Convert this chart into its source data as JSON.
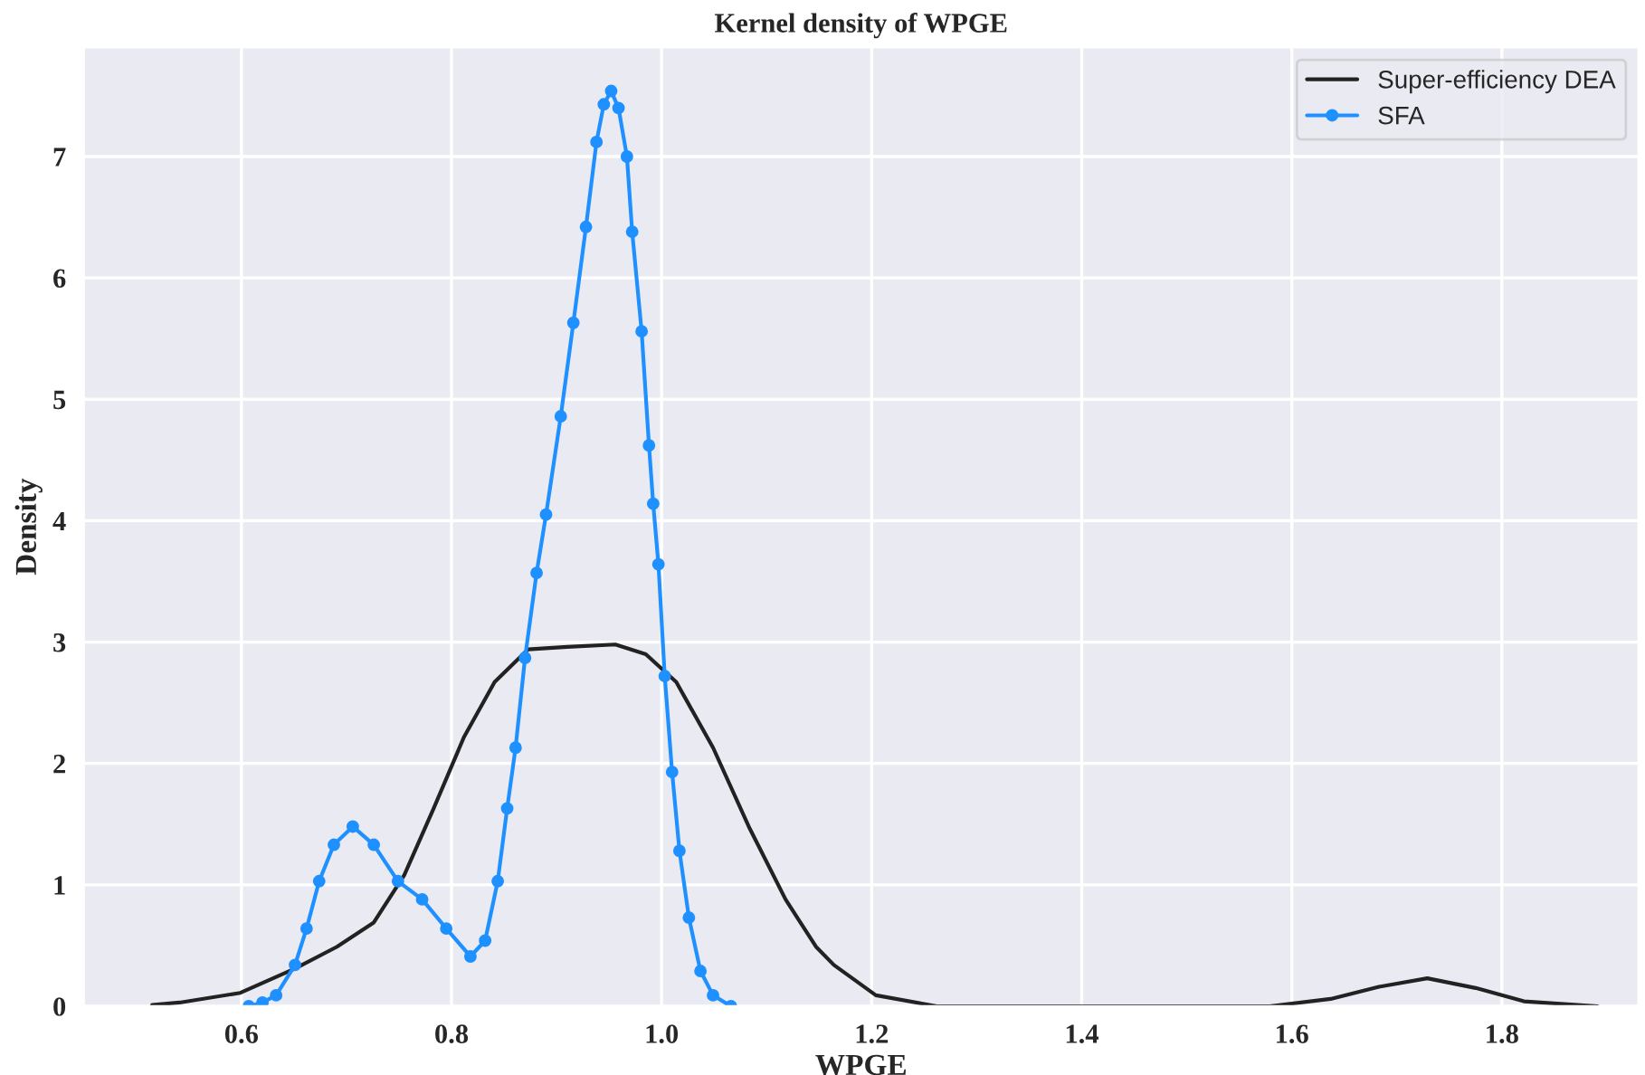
{
  "chart_data": {
    "type": "line",
    "title": "Kernel density of WPGE",
    "xlabel": "WPGE",
    "ylabel": "Density",
    "xlim": [
      0.45,
      1.93
    ],
    "ylim": [
      0,
      7.9
    ],
    "xticks": [
      0.6,
      0.8,
      {
        "value": 1.0,
        "label": "1.0"
      },
      1.2,
      1.4,
      1.6,
      1.8
    ],
    "yticks": [
      0,
      1,
      2,
      3,
      4,
      5,
      6,
      7
    ],
    "grid": true,
    "legend": "top right",
    "series": [
      {
        "name": "Super-efficiency DEA",
        "color": "#222222",
        "marker": "none",
        "x": [
          0.515,
          0.541,
          0.599,
          0.651,
          0.691,
          0.726,
          0.755,
          0.783,
          0.812,
          0.841,
          0.873,
          0.91,
          0.956,
          0.985,
          1.014,
          1.049,
          1.083,
          1.118,
          1.147,
          1.164,
          1.204,
          1.262,
          1.579,
          1.637,
          1.683,
          1.729,
          1.775,
          1.821,
          1.891
        ],
        "values": [
          0.01,
          0.03,
          0.11,
          0.31,
          0.49,
          0.69,
          1.08,
          1.63,
          2.22,
          2.67,
          2.94,
          2.96,
          2.98,
          2.9,
          2.67,
          2.13,
          1.48,
          0.88,
          0.49,
          0.34,
          0.09,
          0.0,
          0.0,
          0.06,
          0.16,
          0.23,
          0.15,
          0.04,
          0.0
        ]
      },
      {
        "name": "SFA",
        "color": "#1e90ff",
        "marker": "circle",
        "x": [
          0.607,
          0.62,
          0.633,
          0.651,
          0.662,
          0.674,
          0.688,
          0.706,
          0.726,
          0.749,
          0.772,
          0.795,
          0.818,
          0.832,
          0.844,
          0.853,
          0.861,
          0.87,
          0.881,
          0.89,
          0.904,
          0.916,
          0.928,
          0.938,
          0.945,
          0.952,
          0.959,
          0.967,
          0.972,
          0.981,
          0.988,
          0.992,
          0.997,
          1.003,
          1.01,
          1.017,
          1.026,
          1.037,
          1.049,
          1.066
        ],
        "values": [
          0.0,
          0.03,
          0.09,
          0.34,
          0.64,
          1.03,
          1.33,
          1.48,
          1.33,
          1.03,
          0.88,
          0.64,
          0.41,
          0.54,
          1.03,
          1.63,
          2.13,
          2.87,
          3.57,
          4.05,
          4.86,
          5.63,
          6.42,
          7.12,
          7.43,
          7.54,
          7.4,
          7.0,
          6.38,
          5.56,
          4.62,
          4.14,
          3.64,
          2.72,
          1.93,
          1.28,
          0.73,
          0.29,
          0.09,
          0.0
        ]
      }
    ]
  }
}
